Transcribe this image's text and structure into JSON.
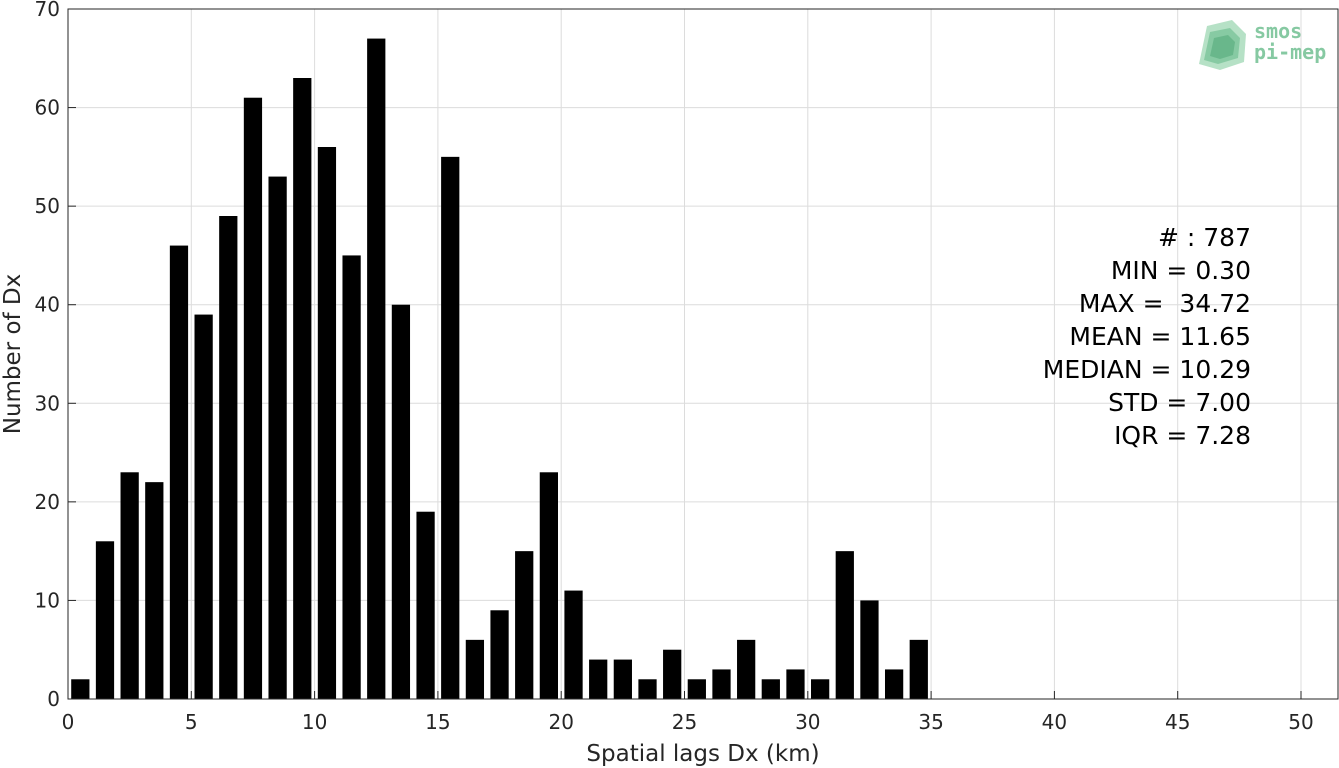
{
  "chart_data": {
    "type": "bar",
    "x": [
      0.5,
      1.5,
      2.5,
      3.5,
      4.5,
      5.5,
      6.5,
      7.5,
      8.5,
      9.5,
      10.5,
      11.5,
      12.5,
      13.5,
      14.5,
      15.5,
      16.5,
      17.5,
      18.5,
      19.5,
      20.5,
      21.5,
      22.5,
      23.5,
      24.5,
      25.5,
      26.5,
      27.5,
      28.5,
      29.5,
      30.5,
      31.5,
      32.5,
      33.5,
      34.5
    ],
    "values": [
      2,
      16,
      23,
      22,
      46,
      39,
      49,
      61,
      53,
      63,
      56,
      45,
      67,
      40,
      19,
      55,
      6,
      9,
      15,
      23,
      11,
      4,
      4,
      2,
      5,
      2,
      3,
      6,
      2,
      3,
      2,
      15,
      10,
      3,
      6
    ],
    "bar_color": "#000000",
    "xlabel": "Spatial lags Dx (km)",
    "ylabel": "Number of Dx",
    "xlim": [
      0,
      51.5
    ],
    "ylim": [
      0,
      70
    ],
    "xticks": [
      0,
      5,
      10,
      15,
      20,
      25,
      30,
      35,
      40,
      45,
      50
    ],
    "yticks": [
      0,
      10,
      20,
      30,
      40,
      50,
      60,
      70
    ],
    "grid": true,
    "stats": [
      "# : 787",
      "MIN = 0.30",
      "MAX =  34.72",
      "MEAN = 11.65",
      "MEDIAN = 10.29",
      "STD = 7.00",
      "IQR = 7.28"
    ]
  },
  "logo": {
    "line1": "smos",
    "line2": "pi-mep",
    "color": "#86c9a2"
  }
}
